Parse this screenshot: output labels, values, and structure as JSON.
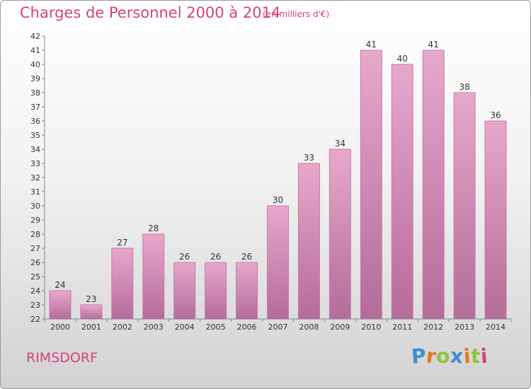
{
  "header": {
    "title": "Charges de Personnel 2000 à 2014",
    "subtitle": "(en milliers d'€)"
  },
  "footer": {
    "commune": "RIMSDORF",
    "logo_letters": [
      {
        "ch": "P",
        "color": "#3a8fd0"
      },
      {
        "ch": "r",
        "color": "#e07a1f"
      },
      {
        "ch": "o",
        "color": "#8cc63f"
      },
      {
        "ch": "x",
        "color": "#3a8fd0"
      },
      {
        "ch": "i",
        "color": "#e07a1f"
      },
      {
        "ch": "t",
        "color": "#8cc63f"
      },
      {
        "ch": "i",
        "color": "#d4427f"
      }
    ]
  },
  "colors": {
    "accent": "#d4427f",
    "bar_top": "#e8a8cc",
    "bar_bottom": "#b46c98",
    "bar_stroke": "#c77aa6"
  },
  "chart_data": {
    "type": "bar",
    "categories": [
      "2000",
      "2001",
      "2002",
      "2003",
      "2004",
      "2005",
      "2006",
      "2007",
      "2008",
      "2009",
      "2010",
      "2011",
      "2012",
      "2013",
      "2014"
    ],
    "values": [
      24,
      23,
      27,
      28,
      26,
      26,
      26,
      30,
      33,
      34,
      41,
      40,
      41,
      38,
      36
    ],
    "ylim": [
      22,
      42
    ],
    "ytick_step": 1,
    "grid": false,
    "data_labels": true
  }
}
